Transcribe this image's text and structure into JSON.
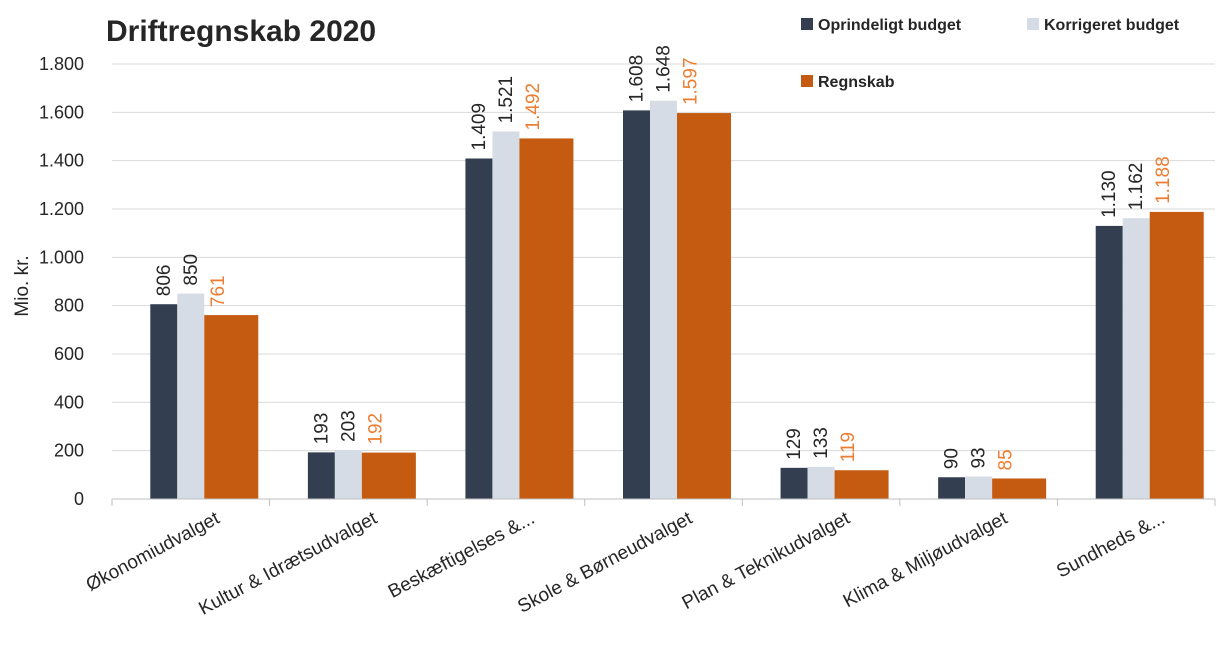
{
  "chart_data": {
    "type": "bar",
    "title": "Driftregnskab 2020",
    "ylabel": "Mio. kr.",
    "xlabel": "",
    "ylim": [
      0,
      1800
    ],
    "yticks": [
      0,
      200,
      400,
      600,
      800,
      1000,
      1200,
      1400,
      1600,
      1800
    ],
    "ytick_labels": [
      "0",
      "200",
      "400",
      "600",
      "800",
      "1.000",
      "1.200",
      "1.400",
      "1.600",
      "1.800"
    ],
    "grid": true,
    "legend_position": "top-right",
    "categories": [
      "Økonomiudvalget",
      "Kultur & Idrætsudvalget",
      "Beskæftigelses &...",
      "Skole & Børneudvalget",
      "Plan & Teknikudvalget",
      "Klima & Miljøudvalget",
      "Sundheds &..."
    ],
    "series": [
      {
        "name": "Oprindeligt budget",
        "color": "#333f50",
        "label_color": "#262626",
        "values": [
          806,
          193,
          1409,
          1608,
          129,
          90,
          1130
        ],
        "labels": [
          "806",
          "193",
          "1.409",
          "1.608",
          "129",
          "90",
          "1.130"
        ]
      },
      {
        "name": "Korrigeret budget",
        "color": "#d6dce5",
        "label_color": "#262626",
        "values": [
          850,
          203,
          1521,
          1648,
          133,
          93,
          1162
        ],
        "labels": [
          "850",
          "203",
          "1.521",
          "1.648",
          "133",
          "93",
          "1.162"
        ]
      },
      {
        "name": "Regnskab",
        "color": "#c55a11",
        "label_color": "#ed7d31",
        "values": [
          761,
          192,
          1492,
          1597,
          119,
          85,
          1188
        ],
        "labels": [
          "761",
          "192",
          "1.492",
          "1.597",
          "119",
          "85",
          "1.188"
        ]
      }
    ]
  },
  "colors": {
    "grid": "#d9d9d9",
    "axis": "#bfbfbf",
    "text": "#262626"
  }
}
